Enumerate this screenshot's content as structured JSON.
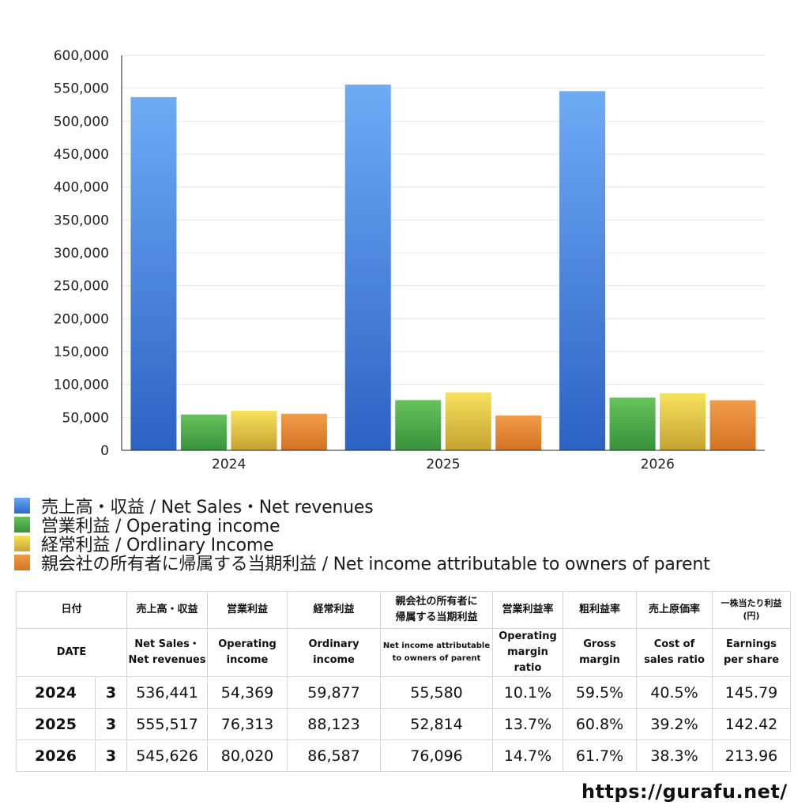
{
  "chart_data": {
    "type": "bar",
    "categories": [
      "2024",
      "2025",
      "2026"
    ],
    "series": [
      {
        "name": "売上高・収益 / Net Sales・Net revenues",
        "values": [
          536441,
          555517,
          545626
        ],
        "color": "#3f7fdc"
      },
      {
        "name": "営業利益 / Operating income",
        "values": [
          54369,
          76313,
          80020
        ],
        "color": "#4aa843"
      },
      {
        "name": "経常利益 / Ordlinary Income",
        "values": [
          59877,
          88123,
          86587
        ],
        "color": "#e7c93a"
      },
      {
        "name": "親会社の所有者に帰属する当期利益 / Net income attributable to owners of parent",
        "values": [
          55580,
          52814,
          76096
        ],
        "color": "#e08630"
      }
    ],
    "ylim": [
      0,
      600000
    ],
    "yticks": [
      "0",
      "50,000",
      "100,000",
      "150,000",
      "200,000",
      "250,000",
      "300,000",
      "350,000",
      "400,000",
      "450,000",
      "500,000",
      "550,000",
      "600,000"
    ],
    "grid": true,
    "legend_position": "bottom-left"
  },
  "table": {
    "header_jp": {
      "date": "日付",
      "sales": "売上高・収益",
      "operating": "営業利益",
      "ordinary": "経常利益",
      "net_1": "親会社の所有者に",
      "net_2": "帰属する当期利益",
      "op_margin": "営業利益率",
      "gross": "粗利益率",
      "cost": "売上原価率",
      "eps_1": "一株当たり利益",
      "eps_2": "(円)"
    },
    "header_en": {
      "date": "DATE",
      "sales_1": "Net Sales・",
      "sales_2": "Net revenues",
      "operating_1": "Operating",
      "operating_2": "income",
      "ordinary_1": "Ordinary",
      "ordinary_2": "income",
      "net_1": "Net income attributable",
      "net_2": "to owners of parent",
      "op_margin_1": "Operating",
      "op_margin_2": "margin",
      "op_margin_3": "ratio",
      "gross_1": "Gross",
      "gross_2": "margin",
      "cost_1": "Cost of",
      "cost_2": "sales ratio",
      "eps_1": "Earnings",
      "eps_2": "per share"
    },
    "rows": [
      {
        "year": "2024",
        "month": "3",
        "sales": "536,441",
        "operating": "54,369",
        "ordinary": "59,877",
        "net": "55,580",
        "op_margin": "10.1%",
        "gross": "59.5%",
        "cost": "40.5%",
        "eps": "145.79"
      },
      {
        "year": "2025",
        "month": "3",
        "sales": "555,517",
        "operating": "76,313",
        "ordinary": "88,123",
        "net": "52,814",
        "op_margin": "13.7%",
        "gross": "60.8%",
        "cost": "39.2%",
        "eps": "142.42"
      },
      {
        "year": "2026",
        "month": "3",
        "sales": "545,626",
        "operating": "80,020",
        "ordinary": "86,587",
        "net": "76,096",
        "op_margin": "14.7%",
        "gross": "61.7%",
        "cost": "38.3%",
        "eps": "213.96"
      }
    ]
  },
  "site": "https://gurafu.net/"
}
